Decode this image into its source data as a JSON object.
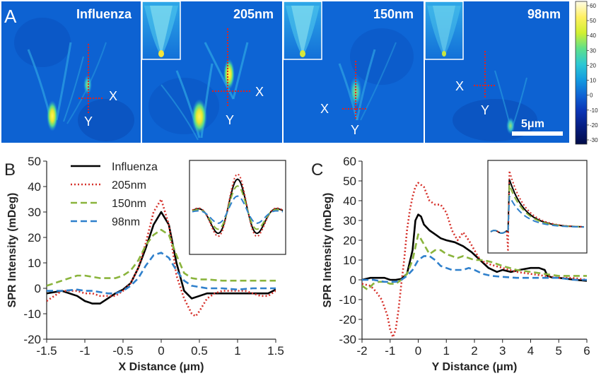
{
  "panel_a": {
    "letter": "A",
    "images": [
      {
        "title": "Influenza",
        "x_label": "X",
        "y_label": "Y",
        "has_inset": false
      },
      {
        "title": "205nm",
        "x_label": "X",
        "y_label": "Y",
        "has_inset": true
      },
      {
        "title": "150nm",
        "x_label": "X",
        "y_label": "Y",
        "has_inset": true
      },
      {
        "title": "98nm",
        "x_label": "X",
        "y_label": "Y",
        "has_inset": true
      }
    ],
    "scale_bar": "5μm",
    "colorbar": {
      "ticks": [
        "60",
        "50",
        "40",
        "30",
        "20",
        "10",
        "0",
        "-10",
        "-20",
        "-30"
      ],
      "colors": [
        "#fffce8",
        "#fff060",
        "#d2f030",
        "#5ee08a",
        "#2cc8d4",
        "#139ae0",
        "#0f62d4",
        "#0b34b4",
        "#061d80",
        "#020c48"
      ]
    },
    "colors": {
      "map_bg": "#0e66d6",
      "map_bg_dark": "#0848b0",
      "highlight": "#f4e624",
      "crosshair": "#e0241e"
    }
  },
  "chart_data": [
    {
      "type": "line",
      "panel": "B",
      "xlabel": "X Distance (μm)",
      "ylabel": "SPR Intensity (mDeg)",
      "xlim": [
        -1.5,
        1.5
      ],
      "ylim": [
        -20,
        50
      ],
      "xticks": [
        "-1.5",
        "-1",
        "-0.5",
        "0",
        "0.5",
        "1",
        "1.5"
      ],
      "yticks": [
        "-20",
        "-10",
        "0",
        "10",
        "20",
        "30",
        "40",
        "50"
      ],
      "legend_position": "top-left",
      "grid": false,
      "series": [
        {
          "name": "Influenza",
          "color": "#000000",
          "style": "solid",
          "x": [
            -1.5,
            -1.3,
            -1.1,
            -1.0,
            -0.9,
            -0.8,
            -0.7,
            -0.6,
            -0.5,
            -0.4,
            -0.3,
            -0.2,
            -0.1,
            0.0,
            0.1,
            0.2,
            0.3,
            0.4,
            0.5,
            0.6,
            0.7,
            0.8,
            0.9,
            1.0,
            1.1,
            1.2,
            1.3,
            1.4,
            1.5
          ],
          "y": [
            -2,
            -1,
            -3,
            -5,
            -6,
            -6,
            -4,
            -2,
            -0.5,
            2,
            8,
            16,
            25,
            30,
            25,
            10,
            -1,
            -4,
            -3,
            -2,
            -2,
            -2,
            -2,
            -2,
            -2,
            -2,
            -2,
            -2,
            -0.5
          ]
        },
        {
          "name": "205nm",
          "color": "#d6322c",
          "style": "dotted",
          "x": [
            -1.5,
            -1.3,
            -1.1,
            -1.0,
            -0.9,
            -0.8,
            -0.7,
            -0.6,
            -0.5,
            -0.4,
            -0.3,
            -0.2,
            -0.1,
            0.0,
            0.1,
            0.2,
            0.3,
            0.4,
            0.45,
            0.5,
            0.6,
            0.7,
            0.8,
            0.9,
            1.0,
            1.1,
            1.2,
            1.3,
            1.4,
            1.5
          ],
          "y": [
            -5,
            -1,
            -1,
            -2,
            -2,
            -3,
            -3,
            -3,
            -1,
            2,
            8,
            18,
            30,
            35,
            25,
            5,
            -4,
            -10,
            -11,
            -9,
            -4,
            -2,
            -1,
            -1,
            -1,
            -1,
            -2,
            -3,
            -3,
            -1
          ]
        },
        {
          "name": "150nm",
          "color": "#8ab43c",
          "style": "dashed",
          "x": [
            -1.5,
            -1.3,
            -1.1,
            -1.0,
            -0.9,
            -0.8,
            -0.7,
            -0.6,
            -0.5,
            -0.4,
            -0.3,
            -0.2,
            -0.1,
            0.0,
            0.1,
            0.2,
            0.3,
            0.4,
            0.5,
            0.6,
            0.8,
            1.0,
            1.2,
            1.5
          ],
          "y": [
            1,
            3,
            5,
            5,
            4.5,
            4,
            4,
            4,
            5,
            7,
            11,
            17,
            21,
            23,
            21,
            13,
            6,
            4,
            3.5,
            3.5,
            3,
            3,
            3,
            3
          ]
        },
        {
          "name": "98nm",
          "color": "#2f80cc",
          "style": "dashed",
          "x": [
            -1.5,
            -1.3,
            -1.1,
            -1.0,
            -0.9,
            -0.8,
            -0.7,
            -0.6,
            -0.5,
            -0.4,
            -0.3,
            -0.2,
            -0.1,
            0.0,
            0.1,
            0.2,
            0.3,
            0.4,
            0.5,
            0.6,
            0.8,
            1.0,
            1.2,
            1.5
          ],
          "y": [
            -1,
            -1,
            -0.5,
            -1,
            -1,
            -1.5,
            -2,
            -2,
            -1,
            1,
            4,
            9,
            13,
            14,
            12,
            7,
            3,
            1,
            0.5,
            0,
            0,
            -0.5,
            0,
            0
          ]
        }
      ]
    },
    {
      "type": "line",
      "panel": "C",
      "xlabel": "Y Distance (μm)",
      "ylabel": "SPR Intensity (mDeg)",
      "xlim": [
        -2,
        6
      ],
      "ylim": [
        -30,
        60
      ],
      "xticks": [
        "-2",
        "-1",
        "0",
        "1",
        "2",
        "3",
        "4",
        "5",
        "6"
      ],
      "yticks": [
        "-30",
        "-20",
        "-10",
        "0",
        "10",
        "20",
        "30",
        "40",
        "50",
        "60"
      ],
      "grid": false,
      "series": [
        {
          "name": "Influenza",
          "color": "#000000",
          "style": "solid",
          "x": [
            -2,
            -1.7,
            -1.4,
            -1.2,
            -1.0,
            -0.8,
            -0.6,
            -0.4,
            -0.2,
            -0.1,
            0.0,
            0.1,
            0.2,
            0.4,
            0.6,
            0.8,
            1.0,
            1.3,
            1.6,
            1.9,
            2.2,
            2.5,
            2.8,
            3.0,
            3.3,
            3.6,
            4.0,
            4.3,
            4.5,
            4.6,
            4.8,
            5.0,
            5.3,
            5.6,
            6.0
          ],
          "y": [
            0,
            1,
            1,
            1,
            0,
            0,
            0.5,
            3,
            15,
            30,
            33,
            32,
            28,
            25,
            23,
            21,
            20,
            19,
            17,
            14,
            10,
            6,
            4,
            5,
            4,
            5,
            6,
            6,
            5,
            2,
            1,
            1,
            0.5,
            0,
            -0.5
          ]
        },
        {
          "name": "205nm",
          "color": "#d6322c",
          "style": "dotted",
          "x": [
            -2,
            -1.7,
            -1.5,
            -1.3,
            -1.1,
            -1.0,
            -0.9,
            -0.8,
            -0.7,
            -0.6,
            -0.5,
            -0.4,
            -0.3,
            -0.2,
            -0.1,
            0.0,
            0.2,
            0.4,
            0.6,
            0.8,
            1.0,
            1.2,
            1.4,
            1.6,
            1.8,
            2.0,
            2.2,
            2.5,
            3.0,
            3.5,
            4.0,
            4.5,
            5.0,
            5.5,
            6.0
          ],
          "y": [
            -2,
            -3,
            -6,
            -10,
            -18,
            -25,
            -29,
            -25,
            -15,
            -2,
            10,
            25,
            35,
            42,
            47,
            49,
            47,
            40,
            38,
            38,
            34,
            25,
            20,
            24,
            20,
            15,
            10,
            8,
            6,
            4,
            3,
            2,
            1,
            1,
            0
          ]
        },
        {
          "name": "150nm",
          "color": "#8ab43c",
          "style": "dashed",
          "x": [
            -2,
            -1.8,
            -1.6,
            -1.4,
            -1.2,
            -1.0,
            -0.8,
            -0.6,
            -0.4,
            -0.2,
            0.0,
            0.2,
            0.4,
            0.6,
            0.8,
            1.0,
            1.2,
            1.4,
            1.6,
            1.8,
            2.0,
            2.3,
            2.6,
            3.0,
            3.5,
            4.0,
            4.5,
            5.0,
            5.5,
            6.0
          ],
          "y": [
            -3,
            -5,
            -2,
            -1,
            -1,
            -2,
            -2,
            0,
            3,
            10,
            23,
            18,
            13,
            15,
            15,
            13,
            12,
            11,
            12,
            11,
            10,
            10,
            9,
            7,
            5,
            4,
            3,
            2,
            2,
            2
          ]
        },
        {
          "name": "98nm",
          "color": "#2f80cc",
          "style": "dashed",
          "x": [
            -2,
            -1.6,
            -1.2,
            -0.8,
            -0.6,
            -0.4,
            -0.2,
            0.0,
            0.2,
            0.4,
            0.6,
            0.8,
            1.0,
            1.2,
            1.4,
            1.6,
            1.8,
            2.0,
            2.3,
            2.6,
            3.0,
            3.5,
            4.0,
            4.5,
            5.0,
            5.5,
            6.0
          ],
          "y": [
            0,
            0,
            -1,
            -1,
            0,
            2,
            5,
            10,
            12,
            12,
            10,
            7,
            6,
            5,
            5,
            5,
            6,
            5,
            3,
            2,
            1.5,
            1,
            1,
            1,
            1,
            0,
            0
          ]
        }
      ]
    }
  ]
}
